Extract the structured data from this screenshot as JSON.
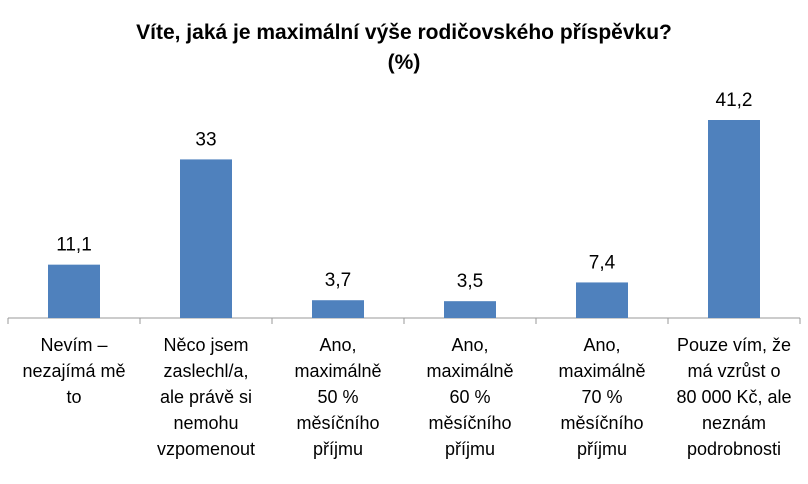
{
  "chart_data": {
    "type": "bar",
    "title": "Víte, jaká je maximální výše rodičovského příspěvku?",
    "subtitle": "(%)",
    "categories": [
      [
        "Nevím –",
        "nezajímá mě",
        "to"
      ],
      [
        "Něco jsem",
        "zaslechl/a,",
        "ale právě si",
        "nemohu",
        "vzpomenout"
      ],
      [
        "Ano,",
        "maximálně",
        "50 %",
        "měsíčního",
        "příjmu"
      ],
      [
        "Ano,",
        "maximálně",
        "60 %",
        "měsíčního",
        "příjmu"
      ],
      [
        "Ano,",
        "maximálně",
        "70 %",
        "měsíčního",
        "příjmu"
      ],
      [
        "Pouze vím, že",
        "má vzrůst o",
        "80 000 Kč, ale",
        "neznám",
        "podrobnosti"
      ]
    ],
    "values": [
      11.1,
      33,
      3.7,
      3.5,
      7.4,
      41.2
    ],
    "value_labels": [
      "11,1",
      "33",
      "3,7",
      "3,5",
      "7,4",
      "41,2"
    ],
    "bar_color": "#4f81bd",
    "ylim": [
      0,
      45
    ],
    "grid": false,
    "legend": "none"
  }
}
